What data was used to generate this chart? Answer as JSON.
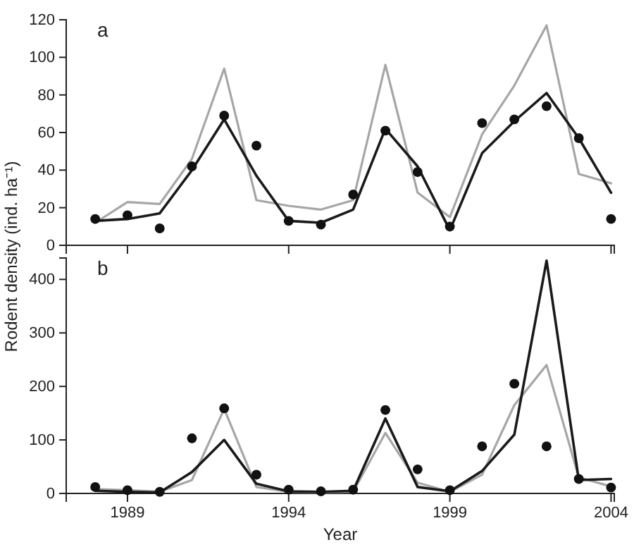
{
  "chart_data": [
    {
      "type": "line",
      "annotations": [
        "a"
      ],
      "x": [
        1988,
        1989,
        1990,
        1991,
        1992,
        1993,
        1994,
        1995,
        1996,
        1997,
        1998,
        1999,
        2000,
        2001,
        2002,
        2003,
        2004
      ],
      "xlim": [
        1987.1,
        2004.1
      ],
      "xticks": [
        {
          "value": 1989,
          "label": null
        },
        {
          "value": 1994,
          "label": null
        },
        {
          "value": 1999,
          "label": null
        },
        {
          "value": 2004,
          "label": null
        }
      ],
      "ylim": [
        0,
        120
      ],
      "yticks": [
        0,
        20,
        40,
        60,
        80,
        100,
        120
      ],
      "tick_labels": "y",
      "grid": false,
      "line_style": "solid",
      "series": [
        {
          "color": "#a6a6a6",
          "values": [
            12,
            23,
            22,
            46,
            94,
            24,
            21,
            19,
            24,
            96,
            28,
            15,
            59,
            85,
            117,
            38,
            33
          ]
        },
        {
          "color": "#1a1a1a",
          "values": [
            13,
            14,
            17,
            40,
            67,
            37,
            13,
            12,
            19,
            62,
            42,
            8,
            49,
            66,
            81,
            57,
            28
          ]
        },
        {
          "type": "scatter",
          "marker": "circle",
          "color": "#111111",
          "values": [
            14,
            16,
            9,
            42,
            69,
            53,
            13,
            11,
            27,
            61,
            39,
            10,
            65,
            67,
            74,
            57,
            14
          ]
        }
      ]
    },
    {
      "type": "line",
      "annotations": [
        "b"
      ],
      "xlabel": "Year",
      "ylabel": "Rodent density (ind. ha⁻¹)",
      "x": [
        1988,
        1989,
        1990,
        1991,
        1992,
        1993,
        1994,
        1995,
        1996,
        1997,
        1998,
        1999,
        2000,
        2001,
        2002,
        2003,
        2004
      ],
      "xlim": [
        1987.1,
        2004.1
      ],
      "xticks": [
        1989,
        1994,
        1999,
        2004
      ],
      "ylim": [
        0,
        440
      ],
      "yticks": [
        0,
        100,
        200,
        300,
        400
      ],
      "grid": false,
      "line_style": "solid",
      "series": [
        {
          "color": "#a6a6a6",
          "values": [
            8,
            6,
            3,
            25,
            158,
            12,
            3,
            2,
            3,
            113,
            20,
            3,
            35,
            165,
            240,
            30,
            13
          ]
        },
        {
          "color": "#1a1a1a",
          "values": [
            5,
            3,
            2,
            40,
            100,
            18,
            4,
            3,
            5,
            140,
            12,
            4,
            42,
            110,
            435,
            25,
            27
          ]
        },
        {
          "type": "scatter",
          "marker": "circle",
          "color": "#111111",
          "values": [
            12,
            6,
            3,
            103,
            159,
            35,
            7,
            4,
            7,
            156,
            45,
            6,
            88,
            205,
            88,
            27,
            11
          ]
        }
      ]
    }
  ]
}
